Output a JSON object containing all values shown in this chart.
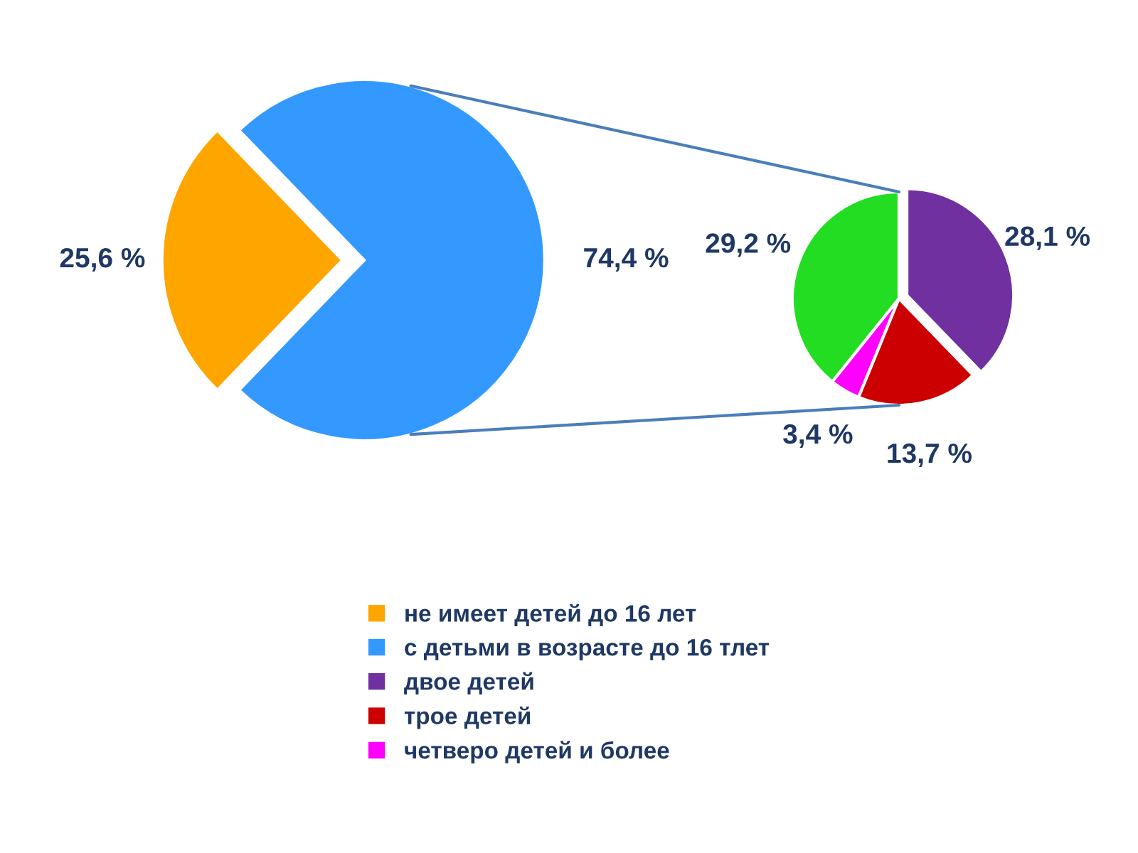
{
  "chart_data": [
    {
      "type": "pie",
      "categories": [
        "не имеет детей до 16 лет",
        "с детьми в возрасте до 16 тлет"
      ],
      "values": [
        25.6,
        74.4
      ],
      "colors": [
        "#ffa500",
        "#3399ff"
      ],
      "value_labels": [
        "25,6 %",
        "74,4 %"
      ],
      "legend": "bottom"
    },
    {
      "type": "pie",
      "categories": [
        null,
        "двое детей",
        "трое детей",
        "четверо детей и более"
      ],
      "values": [
        29.2,
        28.1,
        13.7,
        3.4
      ],
      "colors": [
        "#22dd22",
        "#7030a0",
        "#cc0000",
        "#ff00ff"
      ],
      "value_labels": [
        "29,2 %",
        "28,1 %",
        "13,7 %",
        "3,4 %"
      ],
      "legend": "bottom"
    }
  ]
}
